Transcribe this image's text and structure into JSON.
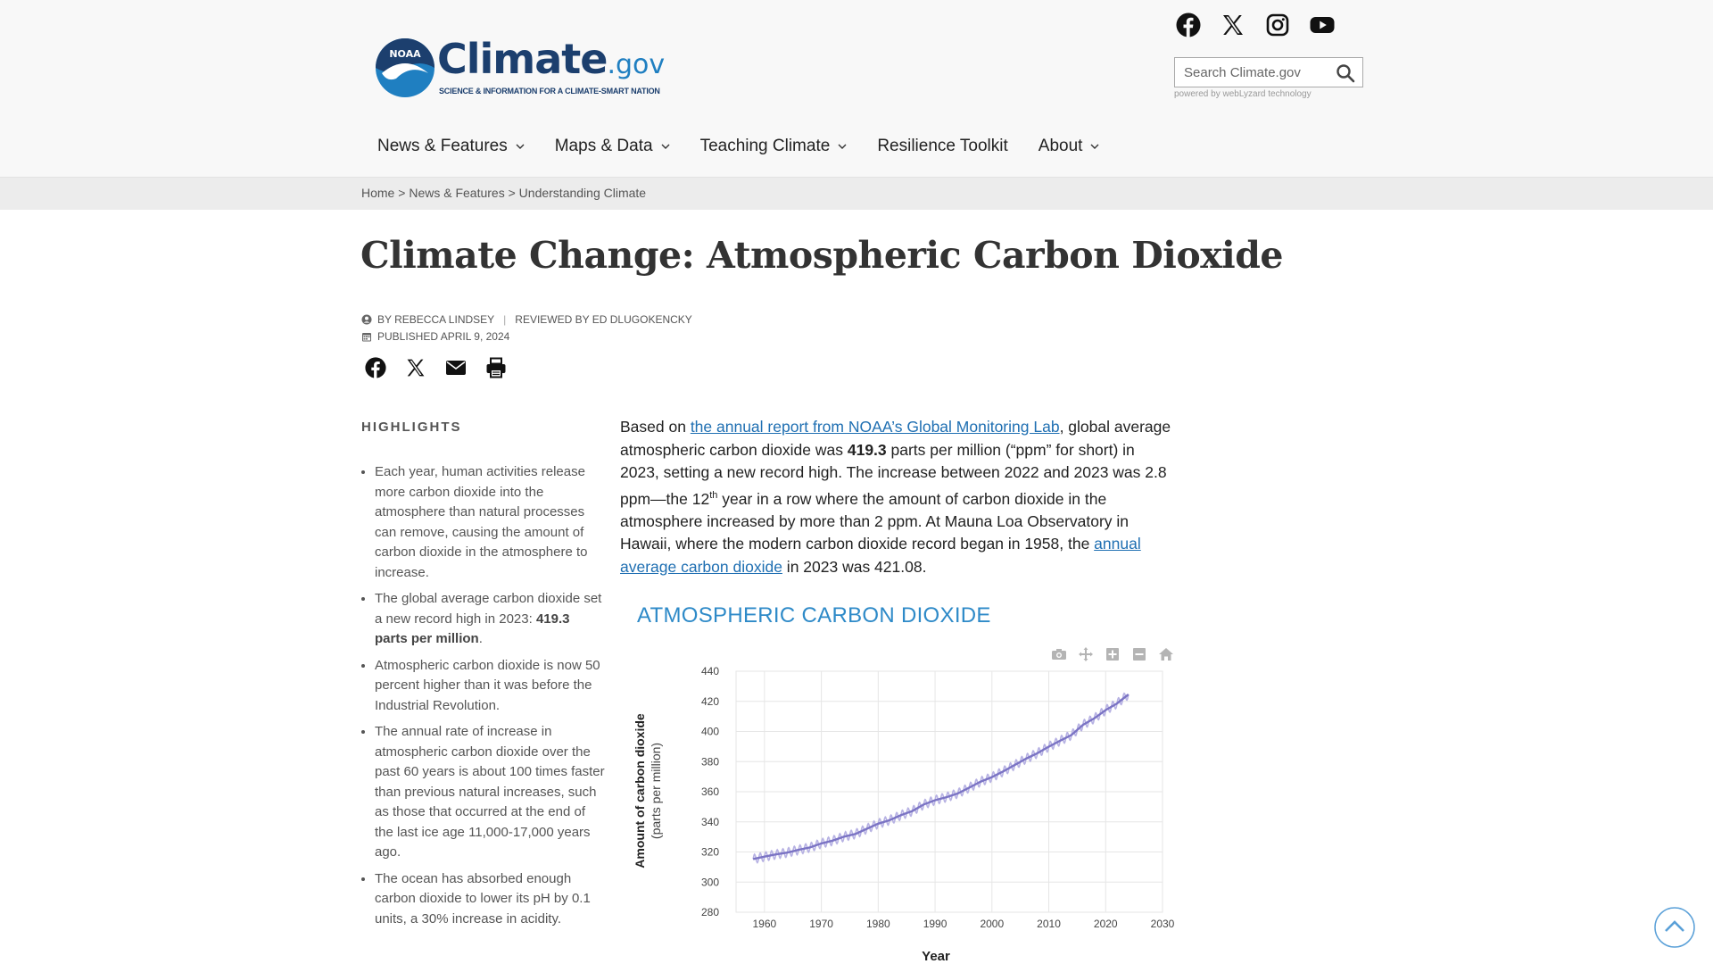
{
  "header": {
    "logo_word": "Climate",
    "logo_suffix": ".gov",
    "logo_badge": "NOAA",
    "logo_tagline": "SCIENCE & INFORMATION FOR A CLIMATE-SMART NATION",
    "search_placeholder": "Search Climate.gov",
    "powered_by": "powered by webLyzard technology",
    "social": [
      "facebook-icon",
      "x-twitter-icon",
      "instagram-icon",
      "youtube-icon"
    ]
  },
  "nav": {
    "items": [
      {
        "label": "News & Features",
        "dropdown": true
      },
      {
        "label": "Maps & Data",
        "dropdown": true
      },
      {
        "label": "Teaching Climate",
        "dropdown": true
      },
      {
        "label": "Resilience Toolkit",
        "dropdown": false
      },
      {
        "label": "About",
        "dropdown": true
      }
    ]
  },
  "breadcrumb": {
    "items": [
      "Home",
      "News & Features",
      "Understanding Climate"
    ],
    "separator": ">"
  },
  "article": {
    "title": "Climate Change: Atmospheric Carbon Dioxide",
    "author": "BY REBECCA LINDSEY",
    "reviewer": "REVIEWED BY ED DLUGOKENCKY",
    "published": "PUBLISHED APRIL 9, 2024",
    "share_icons": [
      "facebook-icon",
      "x-twitter-icon",
      "email-icon",
      "print-icon"
    ]
  },
  "highlights": {
    "heading": "HIGHLIGHTS",
    "items": [
      {
        "text": "Each year, human activities release more carbon dioxide into the atmosphere than natural processes can remove, causing the amount of carbon dioxide in the atmosphere to increase."
      },
      {
        "pre": "The global average carbon dioxide set a new record high in 2023: ",
        "bold": "419.3 parts per million",
        "post": "."
      },
      {
        "text": "Atmospheric carbon dioxide is now 50 percent higher than it was before the Industrial Revolution."
      },
      {
        "text": "The annual rate of increase in atmospheric carbon dioxide over the past 60 years is about 100 times faster than previous natural increases, such as those that occurred at the end of the last ice age 11,000-17,000 years ago."
      },
      {
        "text": "The ocean has absorbed enough carbon dioxide to lower its pH by 0.1 units, a 30% increase in acidity."
      }
    ]
  },
  "body": {
    "t1": "Based on ",
    "link1": "the annual report from NOAA’s Global Monitoring Lab",
    "t2": ", global average atmospheric carbon dioxide was ",
    "bold1": "419.3",
    "t3": " parts per million (“ppm” for short) in 2023, setting a new record high. The increase between 2022 and 2023 was 2.8 ppm—the 12",
    "sup1": "th",
    "t4": " year in a row where the amount of carbon dioxide in the atmosphere increased by more than 2 ppm. At Mauna Loa Observatory in Hawaii, where the modern carbon dioxide record began in 1958, the ",
    "link2": "annual average carbon dioxide",
    "t5": " in 2023 was 421.08."
  },
  "chart_data": {
    "type": "line",
    "title": "ATMOSPHERIC CARBON DIOXIDE",
    "xlabel": "Year",
    "ylabel": "Amount of carbon dioxide",
    "ylabel_unit": "(parts per million)",
    "xlim": [
      1955,
      2030
    ],
    "ylim": [
      280,
      440
    ],
    "x_ticks": [
      1960,
      1970,
      1980,
      1990,
      2000,
      2010,
      2020,
      2030
    ],
    "y_ticks": [
      280,
      300,
      320,
      340,
      360,
      380,
      400,
      420,
      440
    ],
    "grid": true,
    "series_color": "#7b74c4",
    "seasonal_color": "#b7b2e3",
    "series": [
      {
        "x": [
          1958,
          1960,
          1962,
          1964,
          1966,
          1968,
          1970,
          1972,
          1974,
          1976,
          1978,
          1980,
          1982,
          1984,
          1986,
          1988,
          1990,
          1992,
          1994,
          1996,
          1998,
          2000,
          2002,
          2004,
          2006,
          2008,
          2010,
          2012,
          2014,
          2016,
          2018,
          2020,
          2022,
          2024
        ],
        "values": [
          315.3,
          316.9,
          318.4,
          319.6,
          321.4,
          323.0,
          325.7,
          327.5,
          330.2,
          332.0,
          335.4,
          338.8,
          341.1,
          344.4,
          347.2,
          351.5,
          354.4,
          356.4,
          358.9,
          362.7,
          366.7,
          369.7,
          373.5,
          377.7,
          381.9,
          385.6,
          389.9,
          393.9,
          397.7,
          404.4,
          408.7,
          414.2,
          418.6,
          424.6
        ]
      }
    ],
    "modebar_icons": [
      "camera-icon",
      "pan-icon",
      "zoom-in-icon",
      "zoom-out-icon",
      "home-icon"
    ]
  }
}
